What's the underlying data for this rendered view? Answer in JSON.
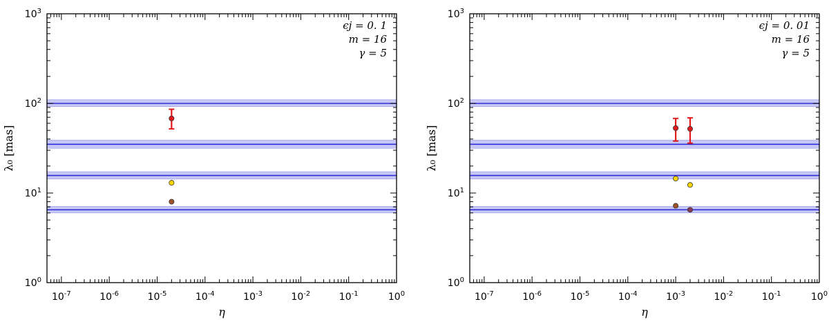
{
  "chart_data": [
    {
      "type": "scatter",
      "xlabel": "η",
      "ylabel": "λ₀ [mas]",
      "xscale": "log",
      "yscale": "log",
      "xlim": [
        5e-08,
        1
      ],
      "ylim": [
        1,
        1000
      ],
      "x_tick_labels": [
        "10-7",
        "10-6",
        "10-5",
        "10-4",
        "10-3",
        "10-2",
        "10-1",
        "100"
      ],
      "y_tick_labels": [
        "100",
        "101",
        "102",
        "103"
      ],
      "annotations": [
        "ϵj = 0. 1",
        "m = 16",
        "γ = 5"
      ],
      "legend_placement": "top-right",
      "bands": [
        {
          "center": 100,
          "low": 92,
          "high": 110
        },
        {
          "center": 35,
          "low": 31.5,
          "high": 39
        },
        {
          "center": 15.7,
          "low": 14.3,
          "high": 17.3
        },
        {
          "center": 6.5,
          "low": 6.0,
          "high": 7.1
        }
      ],
      "points": [
        {
          "x": 2e-05,
          "y": 68,
          "err_low": 52,
          "err_high": 86,
          "color": "#e31a1c"
        },
        {
          "x": 2e-05,
          "y": 13,
          "color": "#ffd700"
        },
        {
          "x": 2e-05,
          "y": 8.0,
          "color": "#a0522d"
        }
      ]
    },
    {
      "type": "scatter",
      "xlabel": "η",
      "ylabel": "λ₀ [mas]",
      "xscale": "log",
      "yscale": "log",
      "xlim": [
        5e-08,
        1
      ],
      "ylim": [
        1,
        1000
      ],
      "x_tick_labels": [
        "10-7",
        "10-6",
        "10-5",
        "10-4",
        "10-3",
        "10-2",
        "10-1",
        "100"
      ],
      "y_tick_labels": [
        "100",
        "101",
        "102",
        "103"
      ],
      "annotations": [
        "ϵj = 0. 01",
        "m = 16",
        "γ = 5"
      ],
      "legend_placement": "top-right",
      "bands": [
        {
          "center": 100,
          "low": 92,
          "high": 110
        },
        {
          "center": 35,
          "low": 31.5,
          "high": 39
        },
        {
          "center": 15.7,
          "low": 14.3,
          "high": 17.3
        },
        {
          "center": 6.5,
          "low": 6.0,
          "high": 7.1
        }
      ],
      "points": [
        {
          "x": 0.001,
          "y": 53,
          "err_low": 38,
          "err_high": 68,
          "color": "#e31a1c"
        },
        {
          "x": 0.002,
          "y": 52,
          "err_low": 36,
          "err_high": 69,
          "color": "#e31a1c"
        },
        {
          "x": 0.001,
          "y": 14.5,
          "color": "#ffd700"
        },
        {
          "x": 0.002,
          "y": 12.3,
          "color": "#ffd700"
        },
        {
          "x": 0.001,
          "y": 7.2,
          "color": "#a0522d"
        },
        {
          "x": 0.002,
          "y": 6.5,
          "color": "#8b3a5a"
        }
      ]
    }
  ],
  "colors": {
    "band_fill": "#c7c7f5",
    "band_line": "#2f2fd8",
    "axis": "#000000"
  }
}
